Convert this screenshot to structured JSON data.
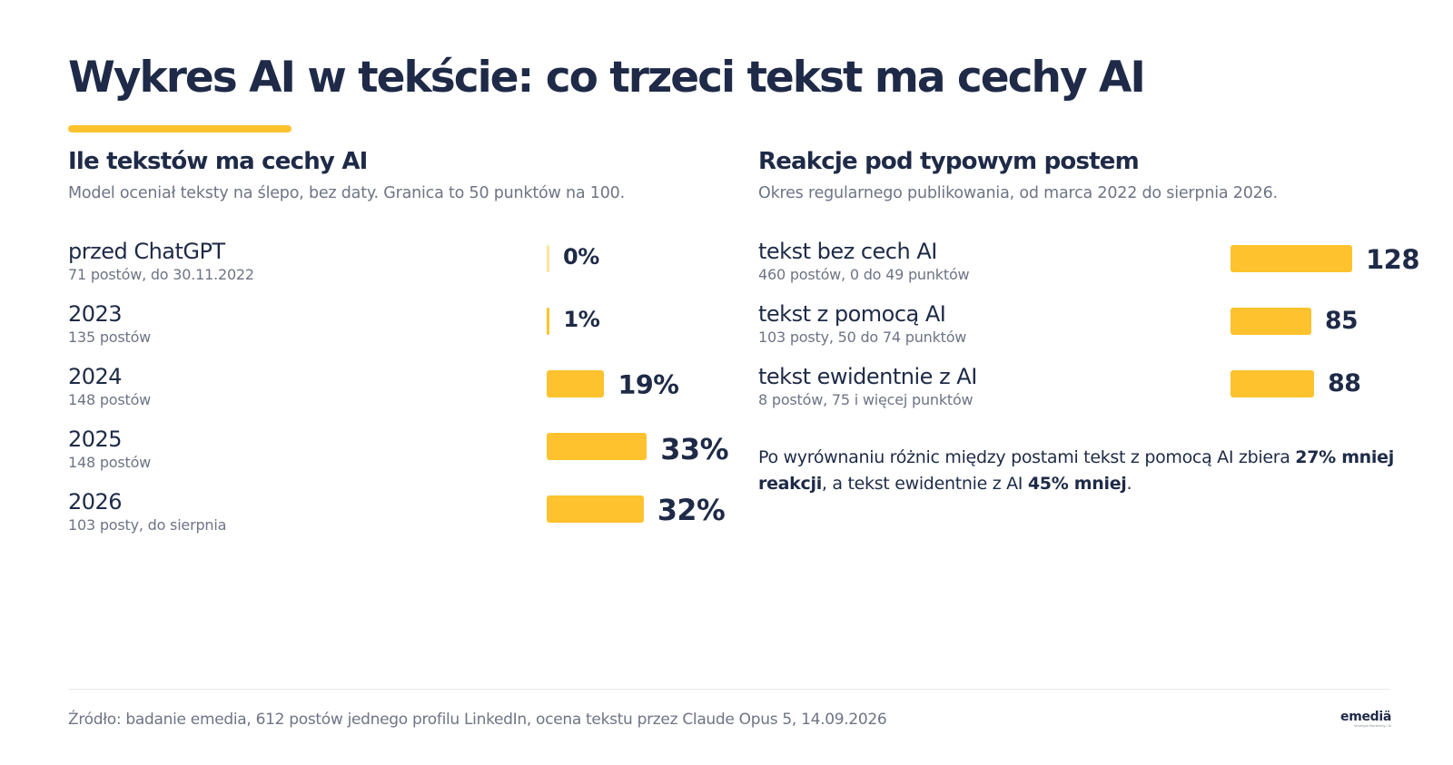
{
  "title": "Wykres AI w tekście: co trzeci tekst ma cechy AI",
  "colors": {
    "accent": "#fdc22d",
    "text": "#1e2a47",
    "muted": "#6e7485"
  },
  "chart_data": [
    {
      "type": "bar",
      "orientation": "horizontal",
      "title": "Ile tekstów ma cechy AI",
      "subtitle": "Model oceniał teksty na ślepo, bez daty. Granica to 50 punktów na 100.",
      "unit": "%",
      "xlim": [
        0,
        100
      ],
      "rows": [
        {
          "label": "przed ChatGPT",
          "note": "71 postów, do 30.11.2022",
          "value": 0,
          "value_label": "0%"
        },
        {
          "label": "2023",
          "note": "135 postów",
          "value": 1,
          "value_label": "1%"
        },
        {
          "label": "2024",
          "note": "148 postów",
          "value": 19,
          "value_label": "19%"
        },
        {
          "label": "2025",
          "note": "148 postów",
          "value": 33,
          "value_label": "33%"
        },
        {
          "label": "2026",
          "note": "103 posty, do sierpnia",
          "value": 32,
          "value_label": "32%"
        }
      ]
    },
    {
      "type": "bar",
      "orientation": "horizontal",
      "title": "Reakcje pod typowym postem",
      "subtitle": "Okres regularnego publikowania, od marca 2022 do sierpnia 2026.",
      "xlim": [
        0,
        128
      ],
      "rows": [
        {
          "label": "tekst bez cech AI",
          "note": "460 postów, 0 do 49 punktów",
          "value": 128,
          "value_label": "128"
        },
        {
          "label": "tekst z pomocą AI",
          "note": "103 posty, 50 do 74 punktów",
          "value": 85,
          "value_label": "85"
        },
        {
          "label": "tekst ewidentnie z AI",
          "note": "8 postów, 75 i więcej punktów",
          "value": 88,
          "value_label": "88"
        }
      ]
    }
  ],
  "note": {
    "text1": "Po wyrównaniu różnic między postami tekst z pomocą AI zbiera ",
    "bold1": "27% mniej reakcji",
    "text2": ", a tekst ewidentnie z AI ",
    "bold2": "45% mniej",
    "text3": "."
  },
  "source": "Źródło: badanie emedia, 612 postów jednego profilu LinkedIn, ocena tekstu przez Claude Opus 5, 14.09.2026",
  "logo": {
    "word": "emediä",
    "tagline": "Strategia Marketing i AI"
  }
}
